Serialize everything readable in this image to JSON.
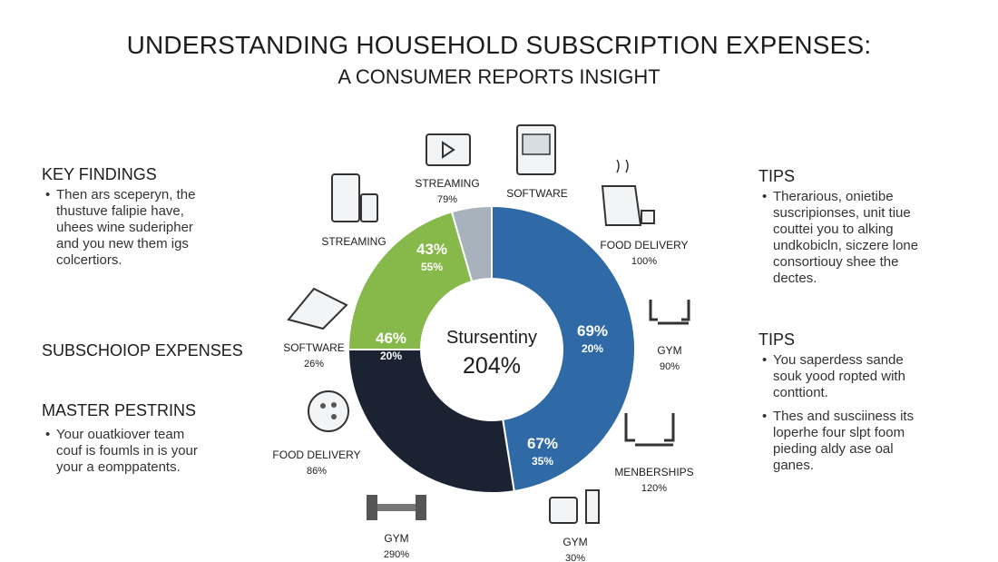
{
  "title": "UNDERSTANDING HOUSEHOLD SUBSCRIPTION EXPENSES:",
  "subtitle": "A CONSUMER REPORTS INSIGHT",
  "left": {
    "key_findings_heading": "KEY FINDINGS",
    "key_findings_text": [
      "Then ars sceperyn, the",
      "thustuve falipie have,",
      "uhees wine suderipher",
      "and you new them igs",
      "colcertiors."
    ],
    "expenses_heading": "SUBSCHOIOP EXPENSES",
    "master_heading": "MASTER PESTRINS",
    "master_text": [
      "Your ouatkiover team",
      "couf is foumls in is your",
      "your a eomppatents."
    ]
  },
  "right": {
    "tips1_heading": "TIPS",
    "tips1_text": [
      "Therarious, onietibe",
      "suscripionses, unit tiue",
      "couttei you to alking",
      "undkobicln, siczere lone",
      "consortiouy shee the",
      "dectes."
    ],
    "tips2_heading": "TIPS",
    "tips2_bullet1": [
      "You saperdess sande",
      "souk yood ropted with",
      "conttiont."
    ],
    "tips2_bullet2": [
      "Thes and susciiness its",
      "loperhe four slpt foom",
      "pieding aldy ase oal",
      "ganes."
    ]
  },
  "chart_data": {
    "type": "pie",
    "donut": true,
    "center_text": "Stursentiny",
    "center_value": "204%",
    "segments": [
      {
        "color": "#2f6aa6",
        "fraction": 0.475,
        "label_main": "69%",
        "label_sub": "20%"
      },
      {
        "color": "#2f6aa6",
        "fraction": 0.0,
        "label_main": "67%",
        "label_sub": "35%"
      },
      {
        "color": "#1b2333",
        "fraction": 0.275,
        "label_main": "46%",
        "label_sub": "20%"
      },
      {
        "color": "#86b84a",
        "fraction": 0.205,
        "label_main": "43%",
        "label_sub": "55%"
      },
      {
        "color": "#a7b2bc",
        "fraction": 0.045,
        "label_main": "",
        "label_sub": ""
      }
    ],
    "category_labels": [
      {
        "name": "STREAMING",
        "value": "79%",
        "icon": "tv-icon"
      },
      {
        "name": "SOFTWARE",
        "value": "",
        "icon": "computer-icon"
      },
      {
        "name": "FOOD DELIVERY",
        "value": "100%",
        "icon": "coffee-pot-icon"
      },
      {
        "name": "GYM",
        "value": "90%",
        "icon": "gym-machine-icon"
      },
      {
        "name": "MENBERSHIPS",
        "value": "120%",
        "icon": "gym-machine-icon"
      },
      {
        "name": "GYM",
        "value": "30%",
        "icon": "mug-icon"
      },
      {
        "name": "GYM",
        "value": "290%",
        "icon": "dumbbell-icon"
      },
      {
        "name": "FOOD DELIVERY",
        "value": "86%",
        "icon": "pizza-icon"
      },
      {
        "name": "SOFTWARE",
        "value": "26%",
        "icon": "laptop-icon"
      },
      {
        "name": "STREAMING",
        "value": "",
        "icon": "phone-icon"
      }
    ]
  }
}
